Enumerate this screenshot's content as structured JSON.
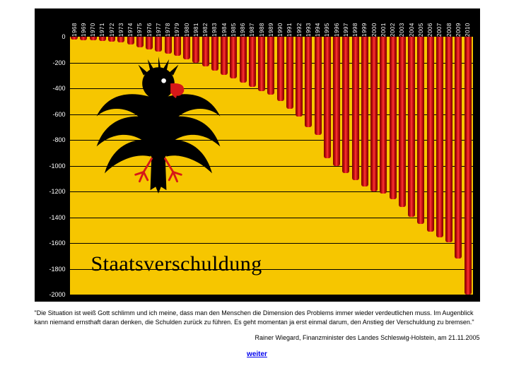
{
  "chart": {
    "type": "bar",
    "title": "Staatsverschuldung",
    "title_font": "Georgia, 'Times New Roman', serif",
    "title_fontsize": 30,
    "title_color": "#000000",
    "background_color": "#f6c600",
    "frame_color": "#000000",
    "grid_color": "#000000",
    "x_label_color": "#ffffff",
    "y_label_color": "#ffffff",
    "x_label_fontsize": 8,
    "y_label_fontsize": 9,
    "ylim": [
      -2000,
      0
    ],
    "ytick_step": 200,
    "yticks": [
      0,
      -200,
      -400,
      -600,
      -800,
      -1000,
      -1200,
      -1400,
      -1600,
      -1800,
      -2000
    ],
    "bar_gradient": [
      "#7a0000",
      "#d11414",
      "#ff3b3b",
      "#d11414",
      "#7a0000"
    ],
    "bar_width": 0.76,
    "years": [
      1968,
      1969,
      1970,
      1971,
      1972,
      1973,
      1974,
      1975,
      1976,
      1977,
      1978,
      1979,
      1980,
      1981,
      1982,
      1983,
      1984,
      1985,
      1986,
      1987,
      1988,
      1989,
      1990,
      1991,
      1992,
      1993,
      1994,
      1995,
      1996,
      1997,
      1998,
      1999,
      2000,
      2001,
      2002,
      2003,
      2004,
      2005,
      2006,
      2007,
      2008,
      2009,
      2010
    ],
    "values": [
      -20,
      -25,
      -30,
      -35,
      -40,
      -45,
      -60,
      -80,
      -100,
      -115,
      -130,
      -150,
      -175,
      -200,
      -230,
      -265,
      -295,
      -325,
      -355,
      -390,
      -420,
      -450,
      -500,
      -560,
      -620,
      -700,
      -760,
      -940,
      -1000,
      -1060,
      -1110,
      -1160,
      -1200,
      -1215,
      -1260,
      -1320,
      -1395,
      -1450,
      -1510,
      -1555,
      -1595,
      -1720,
      -2000
    ]
  },
  "icon": {
    "name": "eagle-icon",
    "body_color": "#000000",
    "accent_color": "#d61818"
  },
  "quote": {
    "text": "\"Die Situation ist weiß Gott schlimm und ich meine, dass man den Menschen die Dimension des Problems immer wieder verdeutlichen muss. Im Augenblick kann niemand ernsthaft daran denken, die Schulden zurück zu führen. Es geht momentan ja erst einmal darum, den Anstieg der Verschuldung zu bremsen.\"",
    "text_fontsize": 9,
    "attribution": "Rainer Wiegard, Finanzminister des Landes Schleswig-Holstein, am 21.11.2005",
    "attribution_fontsize": 9
  },
  "link": {
    "label": "weiter",
    "color": "#0000ee",
    "fontsize": 10
  }
}
